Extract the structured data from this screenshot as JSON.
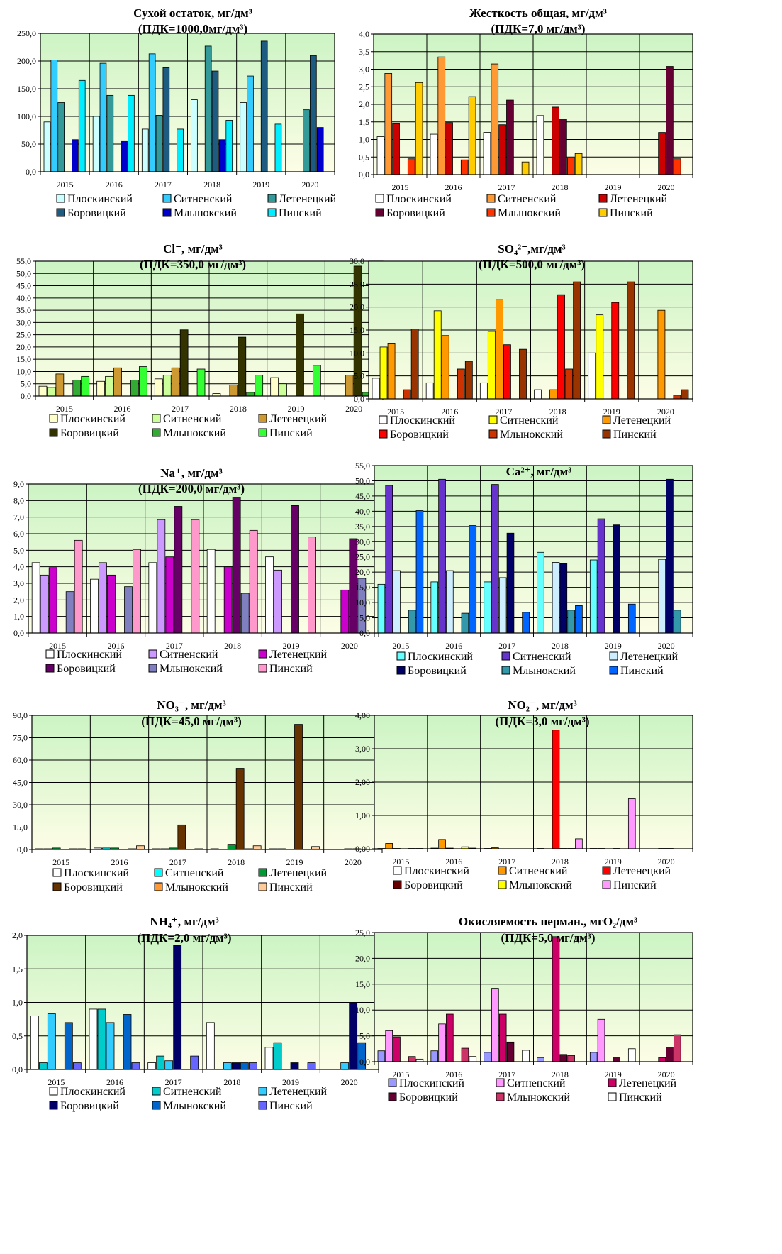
{
  "colors": {
    "plot_bg_top": "#ccf4c4",
    "plot_bg_bottom": "#fdfde6",
    "grid": "#000000"
  },
  "chart_data": [
    {
      "id": "dry-residue",
      "type": "bar",
      "title": "Сухой остаток, мг/дм³",
      "subtitle": "(ПДК=1000,0мг/дм³)",
      "categories": [
        "2015",
        "2016",
        "2017",
        "2018",
        "2019",
        "2020"
      ],
      "ylim": [
        0,
        250
      ],
      "ytick_step": 50,
      "ytick_decimals": 1,
      "grid": true,
      "legend_position": "bottom",
      "series": [
        {
          "name": "Плоскинский",
          "color": "#ccffff",
          "values": [
            90,
            100,
            77,
            130,
            125,
            null
          ]
        },
        {
          "name": "Ситненский",
          "color": "#33ccff",
          "values": [
            202,
            196,
            213,
            null,
            173,
            null
          ]
        },
        {
          "name": "Летенецкий",
          "color": "#339999",
          "values": [
            125,
            138,
            102,
            227,
            null,
            112
          ]
        },
        {
          "name": "Боровицкий",
          "color": "#1d5c80",
          "values": [
            null,
            null,
            188,
            182,
            236,
            210
          ]
        },
        {
          "name": "Млынокский",
          "color": "#0000cc",
          "values": [
            58,
            56,
            null,
            58,
            null,
            80
          ]
        },
        {
          "name": "Пинский",
          "color": "#00eeff",
          "values": [
            165,
            138,
            77,
            93,
            86,
            null
          ]
        }
      ]
    },
    {
      "id": "hardness",
      "type": "bar",
      "title": "Жесткость общая, мг/дм³",
      "subtitle": "(ПДК=7,0 мг/дм³)",
      "categories": [
        "2015",
        "2016",
        "2017",
        "2018",
        "2019",
        "2020"
      ],
      "ylim": [
        0,
        4
      ],
      "ytick_step": 0.5,
      "ytick_decimals": 1,
      "grid": true,
      "legend_position": "bottom",
      "series": [
        {
          "name": "Плоскинский",
          "color": "#ffffff",
          "values": [
            1.08,
            1.15,
            1.2,
            1.68,
            null,
            null
          ]
        },
        {
          "name": "Ситненский",
          "color": "#ff9933",
          "values": [
            2.88,
            3.35,
            3.15,
            null,
            null,
            null
          ]
        },
        {
          "name": "Летенецкий",
          "color": "#cc0000",
          "values": [
            1.45,
            1.48,
            1.42,
            1.92,
            null,
            1.2
          ]
        },
        {
          "name": "Боровицкий",
          "color": "#660033",
          "values": [
            null,
            null,
            2.12,
            1.58,
            null,
            3.08
          ]
        },
        {
          "name": "Млынокский",
          "color": "#ff3300",
          "values": [
            0.45,
            0.42,
            null,
            0.48,
            null,
            0.45
          ]
        },
        {
          "name": "Пинский",
          "color": "#ffcc00",
          "values": [
            2.62,
            2.22,
            0.36,
            0.6,
            null,
            null
          ]
        }
      ]
    },
    {
      "id": "chloride",
      "type": "bar",
      "title": "Cl⁻, мг/дм³",
      "subtitle": "(ПДК=350,0 мг/дм³)",
      "categories": [
        "2015",
        "2016",
        "2017",
        "2018",
        "2019",
        "2020"
      ],
      "ylim": [
        0,
        55
      ],
      "ytick_step": 5,
      "ytick_decimals": 1,
      "grid": true,
      "legend_position": "bottom",
      "series": [
        {
          "name": "Плоскинский",
          "color": "#ffffcc",
          "values": [
            4,
            6,
            7,
            1,
            7.5,
            null
          ]
        },
        {
          "name": "Ситненский",
          "color": "#ccff99",
          "values": [
            3.5,
            8,
            8.5,
            null,
            5,
            null
          ]
        },
        {
          "name": "Летенецкий",
          "color": "#cc9933",
          "values": [
            9,
            11.5,
            11.5,
            4.5,
            null,
            8.5
          ]
        },
        {
          "name": "Боровицкий",
          "color": "#333300",
          "values": [
            null,
            null,
            27,
            24,
            33.5,
            53
          ]
        },
        {
          "name": "Млынокский",
          "color": "#33aa33",
          "values": [
            6.5,
            6.5,
            null,
            1.5,
            null,
            1.5
          ]
        },
        {
          "name": "Пинский",
          "color": "#33ff33",
          "values": [
            8,
            12,
            11,
            8.5,
            12.5,
            null
          ]
        }
      ]
    },
    {
      "id": "sulfate",
      "type": "bar",
      "title": "SO₄²⁻,мг/дм³",
      "subtitle": "(ПДК=500,0 мг/дм³)",
      "categories": [
        "2015",
        "2016",
        "2017",
        "2018",
        "2019",
        "2020"
      ],
      "ylim": [
        0,
        30
      ],
      "ytick_step": 5,
      "ytick_decimals": 1,
      "grid": true,
      "legend_position": "bottom",
      "series": [
        {
          "name": "Плоскинский",
          "color": "#ffffff",
          "values": [
            4.5,
            3.5,
            3.5,
            2,
            10,
            null
          ]
        },
        {
          "name": "Ситненский",
          "color": "#ffff00",
          "values": [
            11.3,
            19.2,
            14.7,
            null,
            18.3,
            null
          ]
        },
        {
          "name": "Летенецкий",
          "color": "#ff9900",
          "values": [
            12,
            13.8,
            21.7,
            2,
            null,
            19.3
          ]
        },
        {
          "name": "Боровицкий",
          "color": "#ff0000",
          "values": [
            null,
            null,
            11.8,
            22.7,
            21,
            null
          ]
        },
        {
          "name": "Млынокский",
          "color": "#cc3300",
          "values": [
            2,
            6.5,
            null,
            6.5,
            null,
            0.8
          ]
        },
        {
          "name": "Пинский",
          "color": "#993300",
          "values": [
            15.2,
            8.2,
            10.8,
            25.5,
            25.5,
            2
          ]
        }
      ]
    },
    {
      "id": "sodium",
      "type": "bar",
      "title": "Na⁺, мг/дм³",
      "subtitle": "(ПДК=200,0 мг/дм³)",
      "categories": [
        "2015",
        "2016",
        "2017",
        "2018",
        "2019",
        "2020"
      ],
      "ylim": [
        0,
        9
      ],
      "ytick_step": 1,
      "ytick_decimals": 1,
      "grid": true,
      "legend_position": "bottom",
      "series": [
        {
          "name": "Плоскинский",
          "color": "#ffffff",
          "values": [
            4.25,
            3.25,
            4.25,
            5.05,
            4.6,
            null
          ]
        },
        {
          "name": "Ситненский",
          "color": "#cc99ff",
          "values": [
            3.5,
            4.25,
            6.85,
            null,
            3.8,
            null
          ]
        },
        {
          "name": "Летенецкий",
          "color": "#cc00cc",
          "values": [
            3.95,
            3.5,
            4.6,
            4,
            null,
            2.6
          ]
        },
        {
          "name": "Боровицкий",
          "color": "#660066",
          "values": [
            null,
            null,
            7.65,
            8.2,
            7.7,
            5.7
          ]
        },
        {
          "name": "Млынокский",
          "color": "#8080c0",
          "values": [
            2.5,
            2.8,
            null,
            2.4,
            null,
            3.3
          ]
        },
        {
          "name": "Пинский",
          "color": "#ff99cc",
          "values": [
            5.6,
            5.05,
            6.85,
            6.2,
            5.8,
            null
          ]
        }
      ]
    },
    {
      "id": "calcium",
      "type": "bar",
      "title": "Ca²⁺, мг/дм³",
      "subtitle": "",
      "categories": [
        "2015",
        "2016",
        "2017",
        "2018",
        "2019",
        "2020"
      ],
      "ylim": [
        0,
        55
      ],
      "ytick_step": 5,
      "ytick_decimals": 1,
      "grid": true,
      "legend_position": "bottom",
      "series": [
        {
          "name": "Плоскинский",
          "color": "#66ffff",
          "values": [
            16,
            16.8,
            16.8,
            26.5,
            24,
            null
          ]
        },
        {
          "name": "Ситненский",
          "color": "#6633cc",
          "values": [
            48.5,
            50.5,
            48.8,
            null,
            37.5,
            null
          ]
        },
        {
          "name": "Летенецкий",
          "color": "#cceeff",
          "values": [
            20.5,
            20.5,
            18.2,
            23.2,
            null,
            24.2
          ]
        },
        {
          "name": "Боровицкий",
          "color": "#000066",
          "values": [
            null,
            null,
            32.8,
            22.8,
            35.5,
            50.5
          ]
        },
        {
          "name": "Млынокский",
          "color": "#3399aa",
          "values": [
            7.5,
            6.5,
            null,
            7.5,
            null,
            7.5
          ]
        },
        {
          "name": "Пинский",
          "color": "#0066ff",
          "values": [
            40.2,
            35.3,
            6.8,
            9,
            9.5,
            null
          ]
        }
      ]
    },
    {
      "id": "nitrate",
      "type": "bar",
      "title": "NO₃⁻, мг/дм³",
      "subtitle": "(ПДК=45,0 мг/дм³)",
      "categories": [
        "2015",
        "2016",
        "2017",
        "2018",
        "2019",
        "2020"
      ],
      "ylim": [
        0,
        90
      ],
      "ytick_step": 15,
      "ytick_decimals": 1,
      "grid": true,
      "legend_position": "bottom",
      "series": [
        {
          "name": "Плоскинский",
          "color": "#ffffff",
          "values": [
            0.5,
            1,
            0.5,
            0.5,
            0.5,
            null
          ]
        },
        {
          "name": "Ситненский",
          "color": "#00ffff",
          "values": [
            0.5,
            1,
            0.5,
            null,
            0.5,
            null
          ]
        },
        {
          "name": "Летенецкий",
          "color": "#009933",
          "values": [
            1,
            1,
            1,
            3.5,
            null,
            0.5
          ]
        },
        {
          "name": "Боровицкий",
          "color": "#663300",
          "values": [
            null,
            null,
            16.5,
            54.5,
            84,
            0.5
          ]
        },
        {
          "name": "Млынокский",
          "color": "#ff9933",
          "values": [
            0.5,
            0.5,
            null,
            0.5,
            null,
            null
          ]
        },
        {
          "name": "Пинский",
          "color": "#ffcc99",
          "values": [
            0.5,
            2.5,
            0.5,
            2.5,
            2,
            null
          ]
        }
      ]
    },
    {
      "id": "nitrite",
      "type": "bar",
      "title": "NO₂⁻, мг/дм³",
      "subtitle": "(ПДК=3,0 мг/дм³)",
      "categories": [
        "2015",
        "2016",
        "2017",
        "2018",
        "2019",
        "2020"
      ],
      "ylim": [
        0,
        4
      ],
      "ytick_step": 1,
      "ytick_decimals": 2,
      "grid": true,
      "legend_position": "bottom",
      "series": [
        {
          "name": "Плоскинский",
          "color": "#ffffff",
          "values": [
            0.01,
            0.02,
            0.01,
            0.01,
            0.01,
            null
          ]
        },
        {
          "name": "Ситненский",
          "color": "#ff9900",
          "values": [
            0.16,
            0.28,
            0.03,
            null,
            0.01,
            null
          ]
        },
        {
          "name": "Летенецкий",
          "color": "#ff0000",
          "values": [
            0.01,
            0.02,
            null,
            3.56,
            null,
            0.01
          ]
        },
        {
          "name": "Боровицкий",
          "color": "#660000",
          "values": [
            null,
            null,
            null,
            0.01,
            0.01,
            0.01
          ]
        },
        {
          "name": "Млынокский",
          "color": "#ffff00",
          "values": [
            0.01,
            0.06,
            null,
            0.01,
            null,
            null
          ]
        },
        {
          "name": "Пинский",
          "color": "#ff99ff",
          "values": [
            0.01,
            0.02,
            null,
            0.3,
            1.5,
            null
          ]
        }
      ]
    },
    {
      "id": "ammonium",
      "type": "bar",
      "title": "NH₄⁺, мг/дм³",
      "subtitle": "(ПДК=2,0 мг/дм³)",
      "categories": [
        "2015",
        "2016",
        "2017",
        "2018",
        "2019",
        "2020"
      ],
      "ylim": [
        0,
        2
      ],
      "ytick_step": 0.5,
      "ytick_decimals": 1,
      "grid": true,
      "legend_position": "bottom",
      "series": [
        {
          "name": "Плоскинский",
          "color": "#ffffff",
          "values": [
            0.8,
            0.9,
            0.1,
            0.7,
            0.33,
            null
          ]
        },
        {
          "name": "Ситненский",
          "color": "#00cccc",
          "values": [
            0.1,
            0.9,
            0.2,
            null,
            0.4,
            null
          ]
        },
        {
          "name": "Летенецкий",
          "color": "#33ccff",
          "values": [
            0.83,
            0.7,
            0.13,
            0.1,
            null,
            0.1
          ]
        },
        {
          "name": "Боровицкий",
          "color": "#000066",
          "values": [
            null,
            null,
            1.85,
            0.1,
            0.1,
            1
          ]
        },
        {
          "name": "Млынокский",
          "color": "#0066cc",
          "values": [
            0.7,
            0.82,
            null,
            0.1,
            null,
            0.4
          ]
        },
        {
          "name": "Пинский",
          "color": "#6666ff",
          "values": [
            0.1,
            0.1,
            0.2,
            0.1,
            0.1,
            null
          ]
        }
      ]
    },
    {
      "id": "oxidizability",
      "type": "bar",
      "title": "Окисляемость перман., мгО₂/дм³",
      "subtitle": "(ПДК=5,0 мг/дм³)",
      "categories": [
        "2015",
        "2016",
        "2017",
        "2018",
        "2019",
        "2020"
      ],
      "ylim": [
        0,
        25
      ],
      "ytick_step": 5,
      "ytick_decimals": 1,
      "grid": true,
      "legend_position": "bottom",
      "series": [
        {
          "name": "Плоскинский",
          "color": "#9999ff",
          "values": [
            2.1,
            2.1,
            1.8,
            0.8,
            1.8,
            null
          ]
        },
        {
          "name": "Ситненский",
          "color": "#ff99ff",
          "values": [
            6,
            7.3,
            14.2,
            null,
            8.2,
            null
          ]
        },
        {
          "name": "Летенецкий",
          "color": "#cc0066",
          "values": [
            4.8,
            9.2,
            9.2,
            24.2,
            null,
            0.8
          ]
        },
        {
          "name": "Боровицкий",
          "color": "#660033",
          "values": [
            null,
            null,
            3.8,
            1.4,
            0.9,
            2.8
          ]
        },
        {
          "name": "Млынокский",
          "color": "#cc3366",
          "values": [
            1,
            2.6,
            null,
            1.2,
            null,
            5.2
          ]
        },
        {
          "name": "Пинский",
          "color": "#ffffff",
          "values": [
            0.5,
            1,
            2.2,
            null,
            2.5,
            null
          ]
        }
      ]
    }
  ]
}
